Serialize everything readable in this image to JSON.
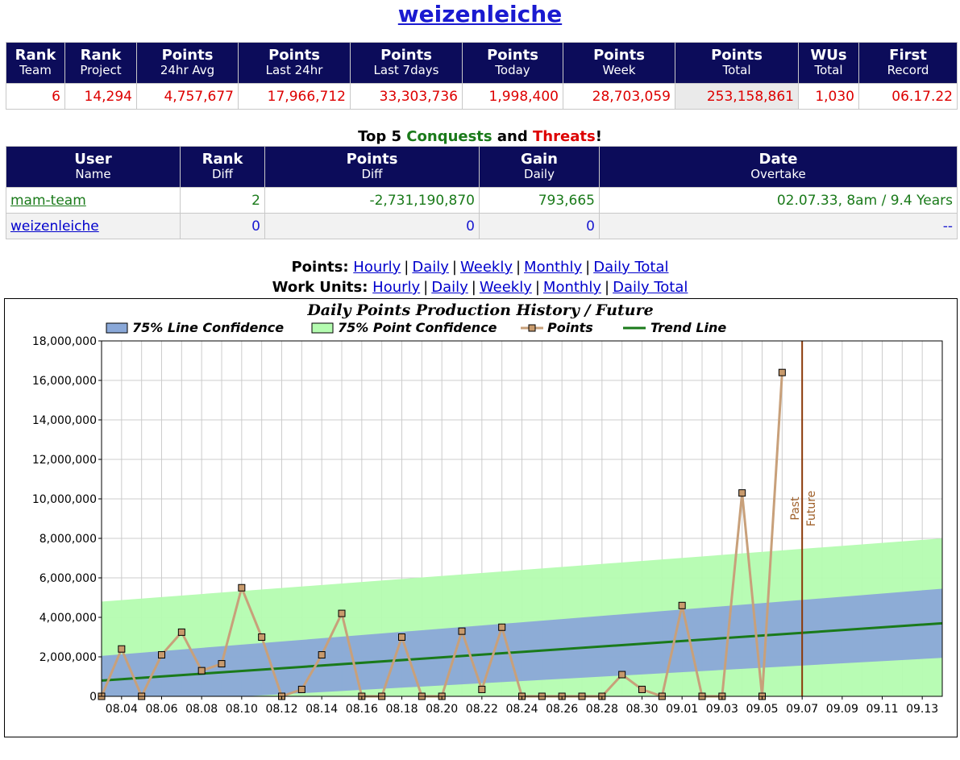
{
  "page": {
    "title": "weizenleiche"
  },
  "stats_table": {
    "headers": [
      {
        "top": "Rank",
        "bottom": "Team"
      },
      {
        "top": "Rank",
        "bottom": "Project"
      },
      {
        "top": "Points",
        "bottom": "24hr Avg"
      },
      {
        "top": "Points",
        "bottom": "Last 24hr"
      },
      {
        "top": "Points",
        "bottom": "Last 7days"
      },
      {
        "top": "Points",
        "bottom": "Today"
      },
      {
        "top": "Points",
        "bottom": "Week"
      },
      {
        "top": "Points",
        "bottom": "Total"
      },
      {
        "top": "WUs",
        "bottom": "Total"
      },
      {
        "top": "First",
        "bottom": "Record"
      }
    ],
    "values": [
      "6",
      "14,294",
      "4,757,677",
      "17,966,712",
      "33,303,736",
      "1,998,400",
      "28,703,059",
      "253,158,861",
      "1,030",
      "06.17.22"
    ]
  },
  "conquests": {
    "caption": {
      "prefix": "Top 5 ",
      "conquests": "Conquests",
      "and": " and ",
      "threats": "Threats",
      "suffix": "!"
    },
    "headers": [
      {
        "top": "User",
        "bottom": "Name"
      },
      {
        "top": "Rank",
        "bottom": "Diff"
      },
      {
        "top": "Points",
        "bottom": "Diff"
      },
      {
        "top": "Gain",
        "bottom": "Daily"
      },
      {
        "top": "Date",
        "bottom": "Overtake"
      }
    ],
    "rows": [
      {
        "name": "mam-team",
        "rank_diff": "2",
        "points_diff": "-2,731,190,870",
        "gain": "793,665",
        "overtake": "02.07.33, 8am / 9.4 Years"
      },
      {
        "name": "weizenleiche",
        "rank_diff": "0",
        "points_diff": "0",
        "gain": "0",
        "overtake": "--"
      }
    ]
  },
  "links": {
    "points_label": "Points:",
    "wu_label": "Work Units:",
    "items": [
      "Hourly",
      "Daily",
      "Weekly",
      "Monthly",
      "Daily Total"
    ],
    "separator": "|"
  },
  "chart_data": {
    "type": "line",
    "title": "Daily Points Production History / Future",
    "legend": [
      "75% Line Confidence",
      "75% Point Confidence",
      "Points",
      "Trend Line"
    ],
    "legend_position": "top",
    "grid": true,
    "x_tick_labels": [
      "08.04",
      "08.06",
      "08.08",
      "08.10",
      "08.12",
      "08.14",
      "08.16",
      "08.18",
      "08.20",
      "08.22",
      "08.24",
      "08.26",
      "08.28",
      "08.30",
      "09.01",
      "09.03",
      "09.05",
      "09.07",
      "09.09",
      "09.11",
      "09.13"
    ],
    "y_tick_labels": [
      "0",
      "2,000,000",
      "4,000,000",
      "6,000,000",
      "8,000,000",
      "10,000,000",
      "12,000,000",
      "14,000,000",
      "16,000,000",
      "18,000,000"
    ],
    "ylim": [
      0,
      18000000
    ],
    "x_dates": [
      "08.03",
      "08.04",
      "08.05",
      "08.06",
      "08.07",
      "08.08",
      "08.09",
      "08.10",
      "08.11",
      "08.12",
      "08.13",
      "08.14",
      "08.15",
      "08.16",
      "08.17",
      "08.18",
      "08.19",
      "08.20",
      "08.21",
      "08.22",
      "08.23",
      "08.24",
      "08.25",
      "08.26",
      "08.27",
      "08.28",
      "08.29",
      "08.30",
      "08.31",
      "09.01",
      "09.02",
      "09.03",
      "09.04",
      "09.05",
      "09.06"
    ],
    "series": [
      {
        "name": "Points",
        "values": [
          0,
          2400000,
          0,
          2100000,
          3250000,
          1300000,
          1650000,
          5500000,
          3000000,
          0,
          350000,
          2100000,
          4200000,
          0,
          0,
          3000000,
          0,
          0,
          3300000,
          350000,
          3500000,
          0,
          0,
          0,
          0,
          0,
          1100000,
          350000,
          0,
          4600000,
          0,
          0,
          10300000,
          0,
          16400000
        ]
      }
    ],
    "trend_line": {
      "start": {
        "x": "08.03",
        "y": 800000
      },
      "end": {
        "x": "09.14",
        "y": 3700000
      }
    },
    "line_confidence": {
      "start": {
        "x": "08.03",
        "lower": -400000,
        "upper": 2050000
      },
      "end": {
        "x": "09.14",
        "lower": 1950000,
        "upper": 5450000
      }
    },
    "point_confidence": {
      "start": {
        "x": "08.03",
        "lower": -3200000,
        "upper": 4800000
      },
      "end": {
        "x": "09.14",
        "lower": -600000,
        "upper": 8000000
      }
    },
    "divider": {
      "x": "09.07",
      "left_label": "Past",
      "right_label": "Future"
    },
    "colors": {
      "points_line": "#c8a07a",
      "points_marker": "#c89a6c",
      "trend_line": "#1a7a1a",
      "line_confidence": "#8aa8d8",
      "point_confidence": "#b4fcb0",
      "divider": "#8b3a0a",
      "divider_text": "#a0602a"
    }
  },
  "colors": {
    "header_bg": "#0c0c5a",
    "stat_value": "#dd0000",
    "conquest": "#1a7a1a",
    "link": "#1a1ad0"
  }
}
